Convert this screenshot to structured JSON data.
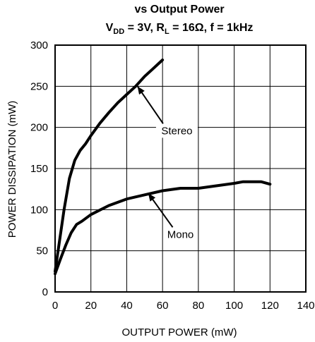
{
  "chart_data": {
    "type": "line",
    "title_line1": "vs Output Power",
    "title_line2": {
      "v": "V",
      "v_sub": "DD",
      "mid": " = 3V, R",
      "r_sub": "L",
      "rest": " = 16Ω, f = 1kHz"
    },
    "xlabel": "OUTPUT POWER (mW)",
    "ylabel": "POWER DISSIPATION (mW)",
    "xlim": [
      0,
      140
    ],
    "ylim": [
      0,
      300
    ],
    "xticks": [
      0,
      20,
      40,
      60,
      80,
      100,
      120,
      140
    ],
    "yticks": [
      0,
      50,
      100,
      150,
      200,
      250,
      300
    ],
    "grid": true,
    "series": [
      {
        "name": "Stereo",
        "x": [
          0,
          2,
          5,
          8,
          11,
          14,
          17,
          20,
          25,
          30,
          35,
          40,
          45,
          50,
          55,
          60
        ],
        "y": [
          25,
          55,
          100,
          138,
          160,
          172,
          180,
          190,
          205,
          218,
          230,
          240,
          250,
          262,
          272,
          282
        ]
      },
      {
        "name": "Mono",
        "x": [
          0,
          3,
          6,
          9,
          12,
          15,
          20,
          30,
          40,
          50,
          60,
          70,
          80,
          90,
          100,
          105,
          115,
          120
        ],
        "y": [
          22,
          40,
          57,
          72,
          82,
          86,
          94,
          105,
          113,
          118,
          123,
          126,
          126,
          129,
          132,
          134,
          134,
          131
        ]
      }
    ],
    "annotations": [
      {
        "text": "Stereo",
        "series": "Stereo",
        "text_at": [
          68,
          196
        ],
        "arrow_to": [
          46,
          250
        ]
      },
      {
        "text": "Mono",
        "series": "Mono",
        "text_at": [
          70,
          70
        ],
        "arrow_to": [
          52,
          120
        ]
      }
    ]
  }
}
